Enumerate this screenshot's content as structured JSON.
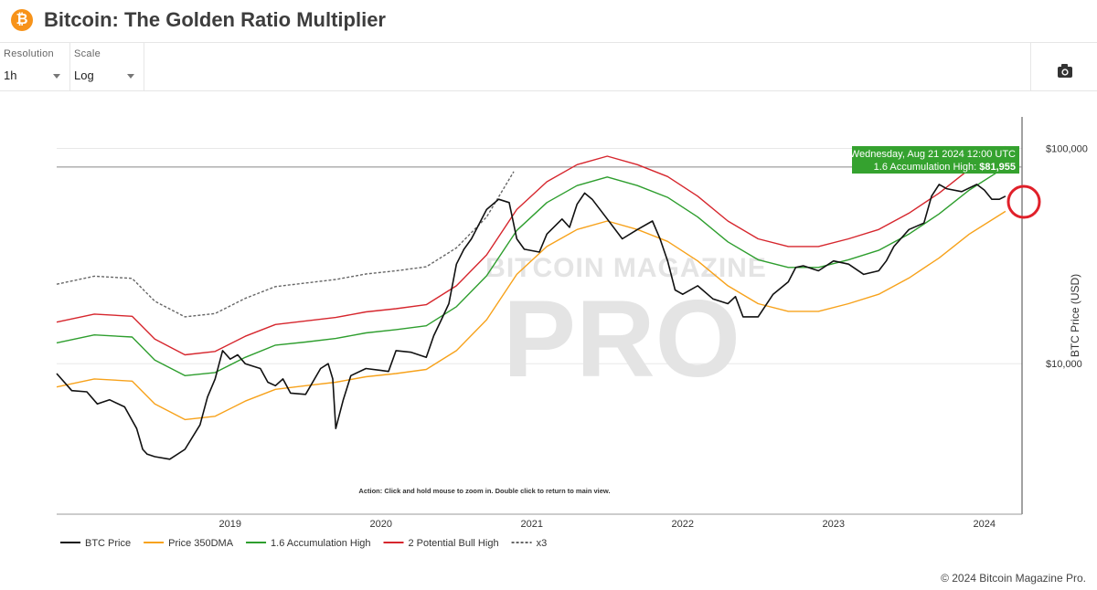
{
  "header": {
    "logo_glyph": "₿",
    "title": "Bitcoin: The Golden Ratio Multiplier"
  },
  "controls": {
    "resolution": {
      "label": "Resolution",
      "value": "1h"
    },
    "scale": {
      "label": "Scale",
      "value": "Log"
    },
    "camera_icon": "camera-icon"
  },
  "colors": {
    "btc": "#111111",
    "dma": "#f7a21b",
    "acc": "#2e9e2e",
    "bull": "#d6262d",
    "x3": "#666666",
    "tooltip": "#35a22f",
    "circle": "#e0202a"
  },
  "tooltip": {
    "date": "Wednesday, Aug 21 2024 12:00 UTC",
    "series": "1.6 Accumulation High:",
    "value": "$81,955"
  },
  "annotation": "Action: Click and hold mouse to zoom in.  Double click to return to main view.",
  "watermark": {
    "line1": "BITCOIN MAGAZINE",
    "line2": "PRO"
  },
  "footer": "© 2024 Bitcoin Magazine Pro.",
  "chart_data": {
    "type": "line",
    "ylabel": "BTC Price (USD)",
    "yscale": "log",
    "xlim": [
      2018.35,
      2024.75
    ],
    "ylim": [
      2000,
      140000
    ],
    "x_ticks": [
      "2019",
      "2020",
      "2021",
      "2022",
      "2023",
      "2024"
    ],
    "y_ticks": [
      {
        "label": "$10,000",
        "value": 10000
      },
      {
        "label": "$100,000",
        "value": 100000
      }
    ],
    "legend_position": "bottom-left",
    "series": [
      {
        "name": "BTC Price",
        "key": "btc",
        "x": [
          2018.35,
          2018.45,
          2018.55,
          2018.62,
          2018.7,
          2018.8,
          2018.88,
          2018.92,
          2018.95,
          2019.0,
          2019.1,
          2019.2,
          2019.3,
          2019.35,
          2019.4,
          2019.45,
          2019.5,
          2019.55,
          2019.6,
          2019.7,
          2019.75,
          2019.8,
          2019.85,
          2019.9,
          2020.0,
          2020.1,
          2020.15,
          2020.18,
          2020.2,
          2020.25,
          2020.3,
          2020.4,
          2020.5,
          2020.55,
          2020.6,
          2020.7,
          2020.8,
          2020.85,
          2020.9,
          2020.95,
          2021.0,
          2021.05,
          2021.1,
          2021.2,
          2021.28,
          2021.35,
          2021.4,
          2021.45,
          2021.55,
          2021.6,
          2021.7,
          2021.75,
          2021.8,
          2021.85,
          2021.9,
          2022.0,
          2022.1,
          2022.2,
          2022.3,
          2022.35,
          2022.4,
          2022.45,
          2022.5,
          2022.6,
          2022.7,
          2022.8,
          2022.85,
          2022.9,
          2023.0,
          2023.1,
          2023.2,
          2023.25,
          2023.3,
          2023.4,
          2023.5,
          2023.6,
          2023.7,
          2023.8,
          2023.85,
          2023.9,
          2024.0,
          2024.1,
          2024.15,
          2024.2,
          2024.25,
          2024.35,
          2024.45,
          2024.5,
          2024.55,
          2024.6,
          2024.64
        ],
        "y": [
          9000,
          7500,
          7400,
          6500,
          6800,
          6300,
          5000,
          4000,
          3800,
          3700,
          3600,
          4000,
          5200,
          7000,
          8500,
          11500,
          10500,
          11000,
          10000,
          9500,
          8200,
          7900,
          8500,
          7300,
          7200,
          9500,
          10000,
          8500,
          5000,
          6800,
          8800,
          9500,
          9300,
          9200,
          11500,
          11300,
          10700,
          13500,
          16000,
          19000,
          29000,
          34000,
          38000,
          52000,
          58000,
          56000,
          38000,
          34000,
          33000,
          40000,
          47000,
          43000,
          55000,
          62000,
          58000,
          47000,
          38000,
          42000,
          46000,
          38000,
          30000,
          22000,
          21000,
          23000,
          20000,
          19000,
          20500,
          16500,
          16500,
          21000,
          24000,
          28000,
          28500,
          27000,
          30000,
          29000,
          26000,
          27000,
          30000,
          35000,
          42000,
          45000,
          60000,
          68000,
          65000,
          63000,
          68000,
          64000,
          58000,
          58000,
          60000
        ]
      },
      {
        "name": "Price 350DMA",
        "key": "dma",
        "x": [
          2018.35,
          2018.6,
          2018.85,
          2019.0,
          2019.2,
          2019.4,
          2019.6,
          2019.8,
          2020.0,
          2020.2,
          2020.4,
          2020.6,
          2020.8,
          2021.0,
          2021.2,
          2021.4,
          2021.6,
          2021.8,
          2022.0,
          2022.2,
          2022.4,
          2022.6,
          2022.8,
          2023.0,
          2023.2,
          2023.4,
          2023.6,
          2023.8,
          2024.0,
          2024.2,
          2024.4,
          2024.64
        ],
        "y": [
          7800,
          8500,
          8300,
          6500,
          5500,
          5700,
          6700,
          7600,
          7900,
          8200,
          8700,
          9000,
          9400,
          11500,
          16000,
          26000,
          35000,
          42000,
          46000,
          42000,
          37000,
          30000,
          23000,
          19000,
          17500,
          17500,
          19000,
          21000,
          25000,
          31000,
          40000,
          51000
        ]
      },
      {
        "name": "1.6 Accumulation High",
        "key": "acc",
        "x": [
          2018.35,
          2018.6,
          2018.85,
          2019.0,
          2019.2,
          2019.4,
          2019.6,
          2019.8,
          2020.0,
          2020.2,
          2020.4,
          2020.6,
          2020.8,
          2021.0,
          2021.2,
          2021.4,
          2021.6,
          2021.8,
          2022.0,
          2022.2,
          2022.4,
          2022.6,
          2022.8,
          2023.0,
          2023.2,
          2023.4,
          2023.6,
          2023.8,
          2024.0,
          2024.2,
          2024.4,
          2024.64
        ],
        "y": [
          12500,
          13600,
          13300,
          10400,
          8800,
          9100,
          10700,
          12200,
          12600,
          13100,
          13900,
          14400,
          15000,
          18400,
          25600,
          41600,
          56000,
          67200,
          73600,
          67200,
          59200,
          48000,
          36800,
          30400,
          28000,
          28000,
          30400,
          33600,
          40000,
          49600,
          64000,
          81955
        ]
      },
      {
        "name": "2 Potential Bull High",
        "key": "bull",
        "x": [
          2018.35,
          2018.6,
          2018.85,
          2019.0,
          2019.2,
          2019.4,
          2019.6,
          2019.8,
          2020.0,
          2020.2,
          2020.4,
          2020.6,
          2020.8,
          2021.0,
          2021.2,
          2021.4,
          2021.6,
          2021.8,
          2022.0,
          2022.2,
          2022.4,
          2022.6,
          2022.8,
          2023.0,
          2023.2,
          2023.4,
          2023.6,
          2023.8,
          2024.0,
          2024.2,
          2024.4,
          2024.64
        ],
        "y": [
          15600,
          17000,
          16600,
          13000,
          11000,
          11400,
          13400,
          15200,
          15800,
          16400,
          17400,
          18000,
          18800,
          23000,
          32000,
          52000,
          70000,
          84000,
          92000,
          84000,
          74000,
          60000,
          46000,
          38000,
          35000,
          35000,
          38000,
          42000,
          50000,
          62000,
          80000,
          102000
        ]
      },
      {
        "name": "x3",
        "key": "x3",
        "x": [
          2018.35,
          2018.6,
          2018.85,
          2019.0,
          2019.2,
          2019.4,
          2019.6,
          2019.8,
          2020.0,
          2020.2,
          2020.4,
          2020.6,
          2020.8,
          2021.0,
          2021.2,
          2021.38
        ],
        "y": [
          23400,
          25500,
          24900,
          19500,
          16500,
          17100,
          20100,
          22800,
          23700,
          24600,
          26100,
          27000,
          28200,
          34500,
          48000,
          78000
        ]
      }
    ]
  }
}
